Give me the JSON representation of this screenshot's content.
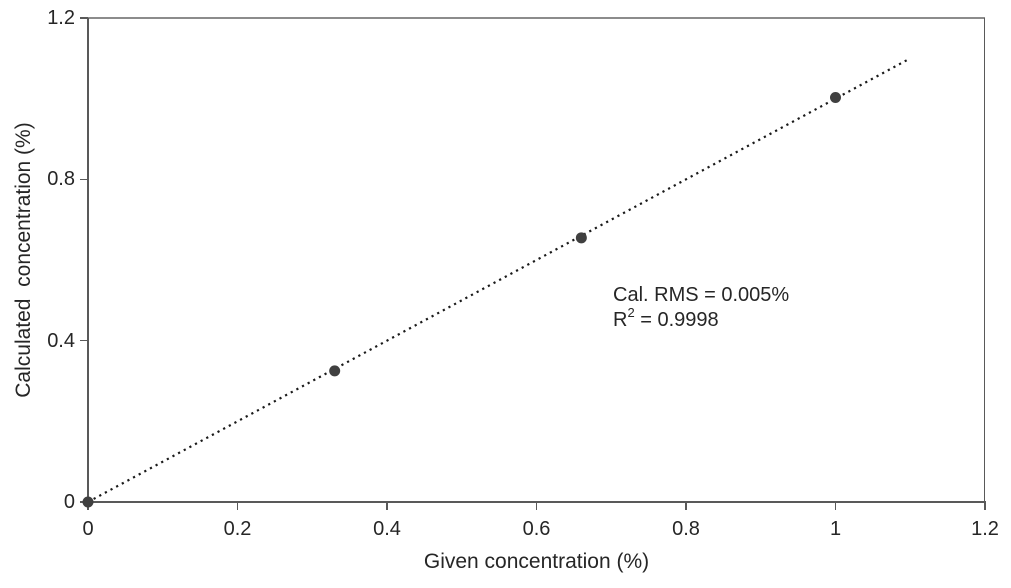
{
  "chart_data": {
    "type": "scatter",
    "title": "",
    "x": {
      "label": "Given concentration (%)",
      "min": 0,
      "max": 1.2,
      "ticks": [
        0,
        0.2,
        0.4,
        0.6,
        0.8,
        1,
        1.2
      ],
      "tick_labels": [
        "0",
        "0.2",
        "0.4",
        "0.6",
        "0.8",
        "1",
        "1.2"
      ]
    },
    "y": {
      "label": "Calculated  concentration (%)",
      "min": 0,
      "max": 1.2,
      "ticks": [
        0,
        0.4,
        0.8,
        1.2
      ],
      "tick_labels": [
        "0",
        "0.4",
        "0.8",
        "1.2"
      ]
    },
    "points": [
      {
        "x": 0,
        "y": 0
      },
      {
        "x": 0.33,
        "y": 0.325
      },
      {
        "x": 0.66,
        "y": 0.655
      },
      {
        "x": 1.0,
        "y": 1.003
      }
    ],
    "trendline": {
      "x1": 0,
      "y1": 0,
      "x2": 1.1,
      "y2": 1.1,
      "style": "dotted"
    },
    "annotation": {
      "line1": "Cal. RMS = 0.005%",
      "line2_base": "R",
      "line2_sup": "2",
      "line2_rest": " = 0.9998"
    },
    "legend_position": "none",
    "grid": false,
    "colors": {
      "point": "#404040",
      "trendline": "#1a1a1a",
      "axis": "#595959",
      "border": "#8c8c8c",
      "text": "#262626"
    }
  }
}
